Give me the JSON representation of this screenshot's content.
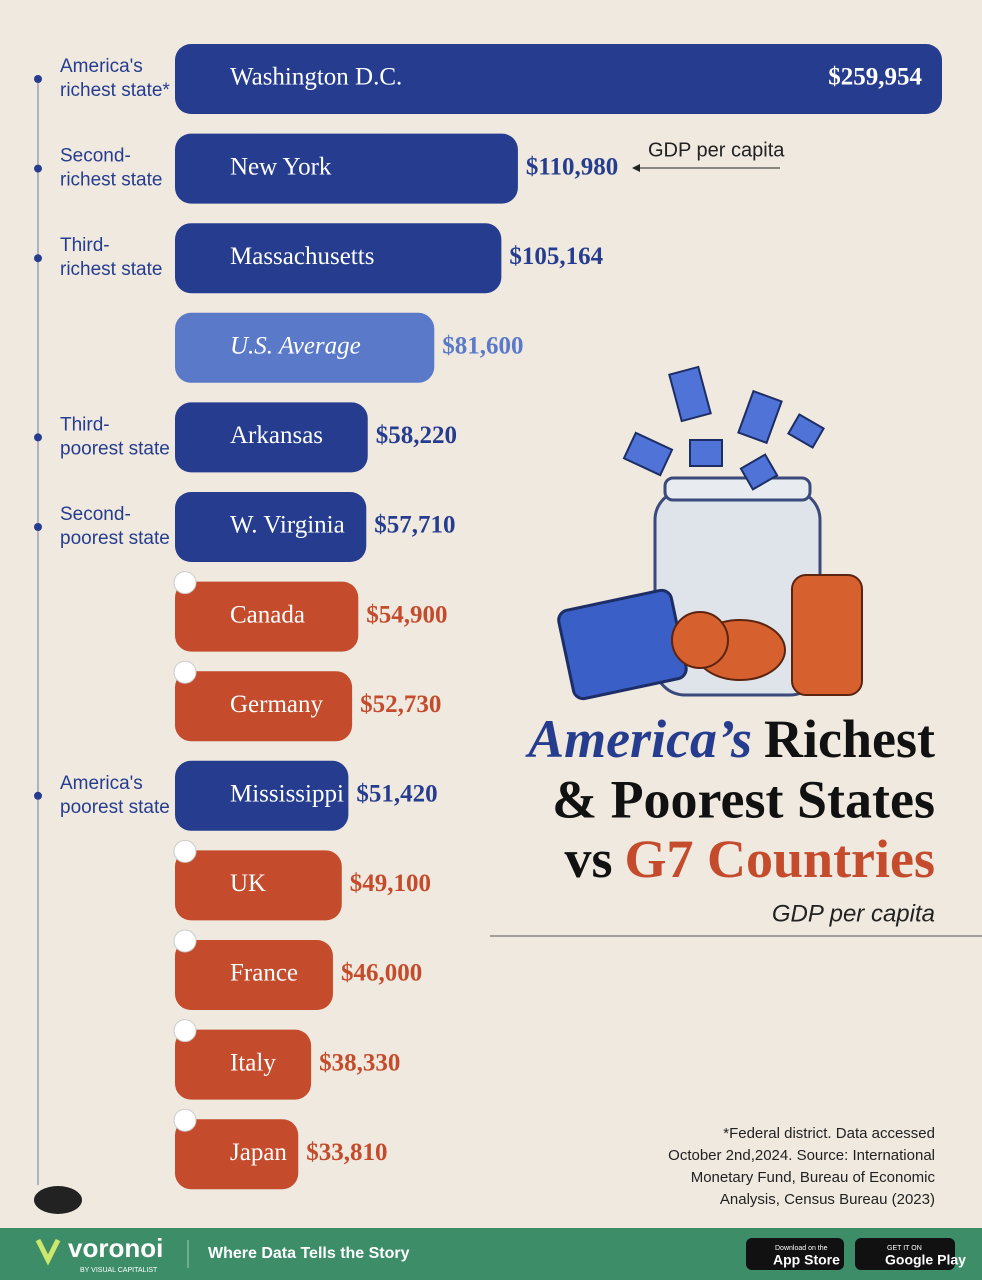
{
  "chart_data": {
    "type": "bar",
    "title_parts": [
      "America’s",
      "Richest",
      "& Poorest States",
      "vs",
      "G7 Countries"
    ],
    "subtitle": "GDP per capita",
    "annotation": "GDP per capita",
    "categories": [
      "Washington D.C.",
      "New York",
      "Massachusetts",
      "U.S. Average",
      "Arkansas",
      "W. Virginia",
      "Canada",
      "Germany",
      "Mississippi",
      "UK",
      "France",
      "Italy",
      "Japan"
    ],
    "values": [
      259954,
      110980,
      105164,
      81600,
      58220,
      57710,
      54900,
      52730,
      51420,
      49100,
      46000,
      38330,
      33810
    ],
    "value_labels": [
      "$259,954",
      "$110,980",
      "$105,164",
      "$81,600",
      "$58,220",
      "$57,710",
      "$54,900",
      "$52,730",
      "$51,420",
      "$49,100",
      "$46,000",
      "$38,330",
      "$33,810"
    ],
    "colors": [
      "#263d8f",
      "#263d8f",
      "#263d8f",
      "#5b79c9",
      "#263d8f",
      "#263d8f",
      "#c44b2b",
      "#c44b2b",
      "#263d8f",
      "#c44b2b",
      "#c44b2b",
      "#c44b2b",
      "#c44b2b"
    ],
    "side_labels": [
      [
        "America's",
        "richest state*"
      ],
      [
        "Second-",
        "richest state"
      ],
      [
        "Third-",
        "richest state"
      ],
      null,
      [
        "Third-",
        "poorest state"
      ],
      [
        "Second-",
        "poorest state"
      ],
      null,
      null,
      [
        "America's",
        "poorest state"
      ],
      null,
      null,
      null,
      null
    ],
    "footnote": [
      "*Federal district. Data accessed",
      "October 2nd,2024. Source: International",
      "Monetary Fund, Bureau of Economic",
      "Analysis, Census Bureau (2023)"
    ]
  },
  "footer": {
    "brand": "voronoi",
    "brand_sub": "BY VISUAL CAPITALIST",
    "tagline": "Where Data Tells the Story",
    "app_store_small": "Download on the",
    "app_store": "App Store",
    "google_small": "GET IT ON",
    "google": "Google Play"
  }
}
